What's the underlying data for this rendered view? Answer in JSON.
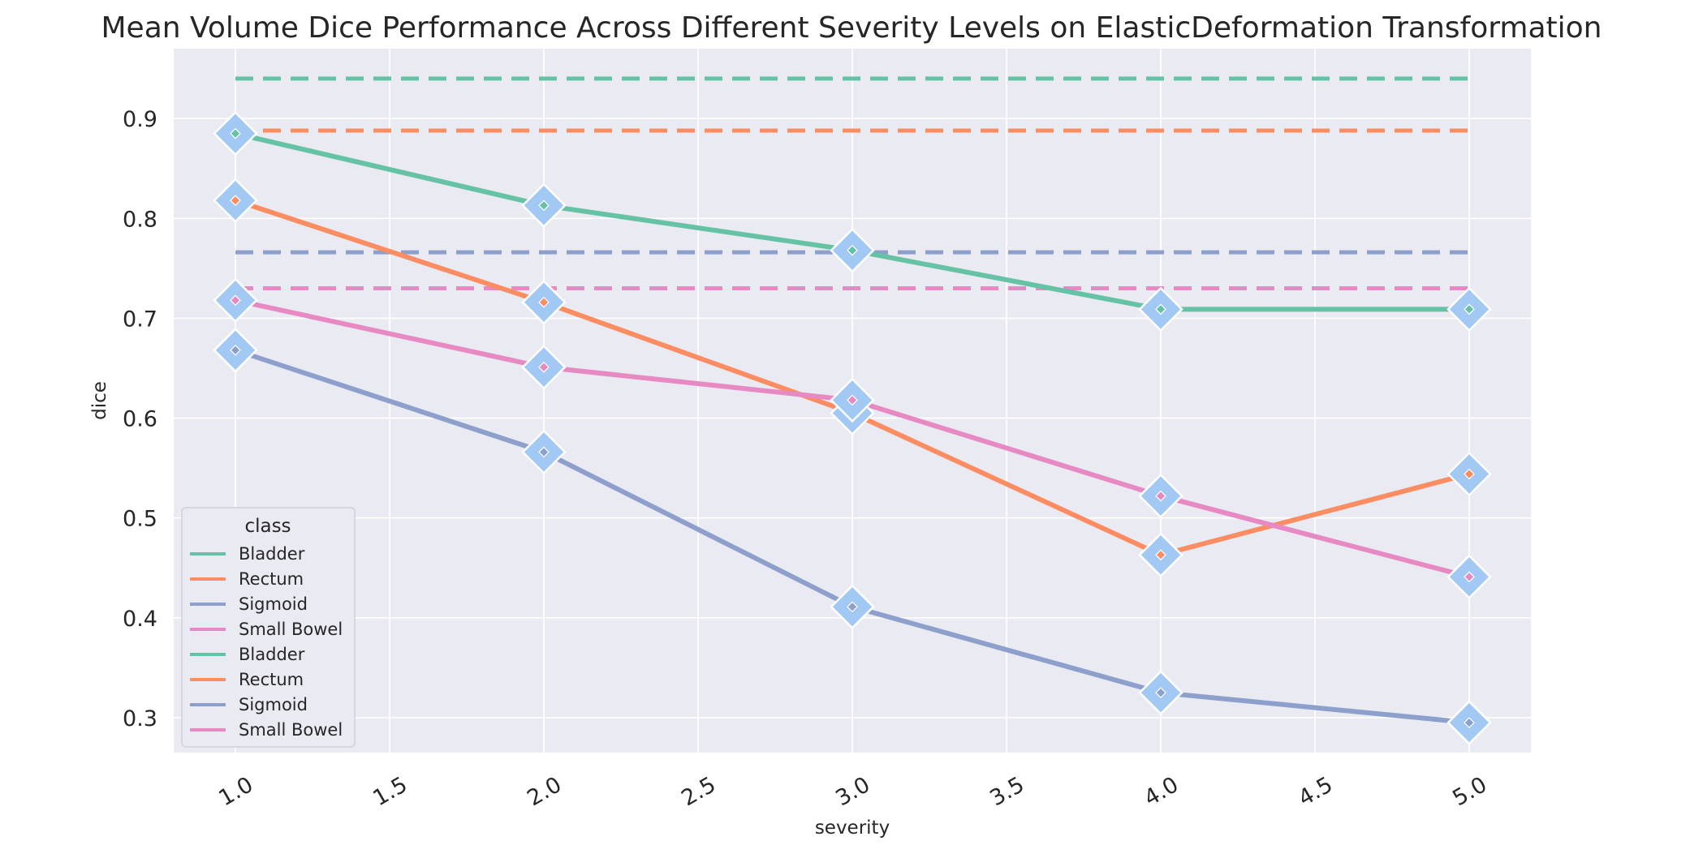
{
  "chart_data": {
    "type": "line",
    "title": "Mean Volume Dice Performance Across Different Severity Levels on ElasticDeformation Transformation",
    "xlabel": "severity",
    "ylabel": "dice",
    "x": [
      1.0,
      2.0,
      3.0,
      4.0,
      5.0
    ],
    "xticks": [
      "1.0",
      "1.5",
      "2.0",
      "2.5",
      "3.0",
      "3.5",
      "4.0",
      "4.5",
      "5.0"
    ],
    "xtick_values": [
      1.0,
      1.5,
      2.0,
      2.5,
      3.0,
      3.5,
      4.0,
      4.5,
      5.0
    ],
    "yticks": [
      "0.3",
      "0.4",
      "0.5",
      "0.6",
      "0.7",
      "0.8",
      "0.9"
    ],
    "ytick_values": [
      0.3,
      0.4,
      0.5,
      0.6,
      0.7,
      0.8,
      0.9
    ],
    "xlim": [
      0.8,
      5.2
    ],
    "ylim": [
      0.265,
      0.97
    ],
    "grid": true,
    "legend": {
      "title": "class",
      "placement": "lower-left",
      "entries": [
        {
          "label": "Bladder",
          "color": "#66c2a5"
        },
        {
          "label": "Rectum",
          "color": "#fc8d62"
        },
        {
          "label": "Sigmoid",
          "color": "#8da0cb"
        },
        {
          "label": "Small Bowel",
          "color": "#e78ac3"
        },
        {
          "label": "Bladder",
          "color": "#66c2a5"
        },
        {
          "label": "Rectum",
          "color": "#fc8d62"
        },
        {
          "label": "Sigmoid",
          "color": "#8da0cb"
        },
        {
          "label": "Small Bowel",
          "color": "#e78ac3"
        }
      ]
    },
    "series": [
      {
        "name": "Bladder",
        "color": "#66c2a5",
        "values": [
          0.885,
          0.813,
          0.768,
          0.709,
          0.709
        ],
        "baseline": 0.94
      },
      {
        "name": "Rectum",
        "color": "#fc8d62",
        "values": [
          0.818,
          0.716,
          0.605,
          0.463,
          0.544
        ],
        "baseline": 0.888
      },
      {
        "name": "Sigmoid",
        "color": "#8da0cb",
        "values": [
          0.668,
          0.566,
          0.411,
          0.325,
          0.295
        ],
        "baseline": 0.766
      },
      {
        "name": "Small Bowel",
        "color": "#e78ac3",
        "values": [
          0.718,
          0.651,
          0.618,
          0.522,
          0.441
        ],
        "baseline": 0.73
      }
    ],
    "marker_color": "#a1c9f4",
    "plot_background": "#eaeaf2",
    "grid_color": "#ffffff"
  }
}
